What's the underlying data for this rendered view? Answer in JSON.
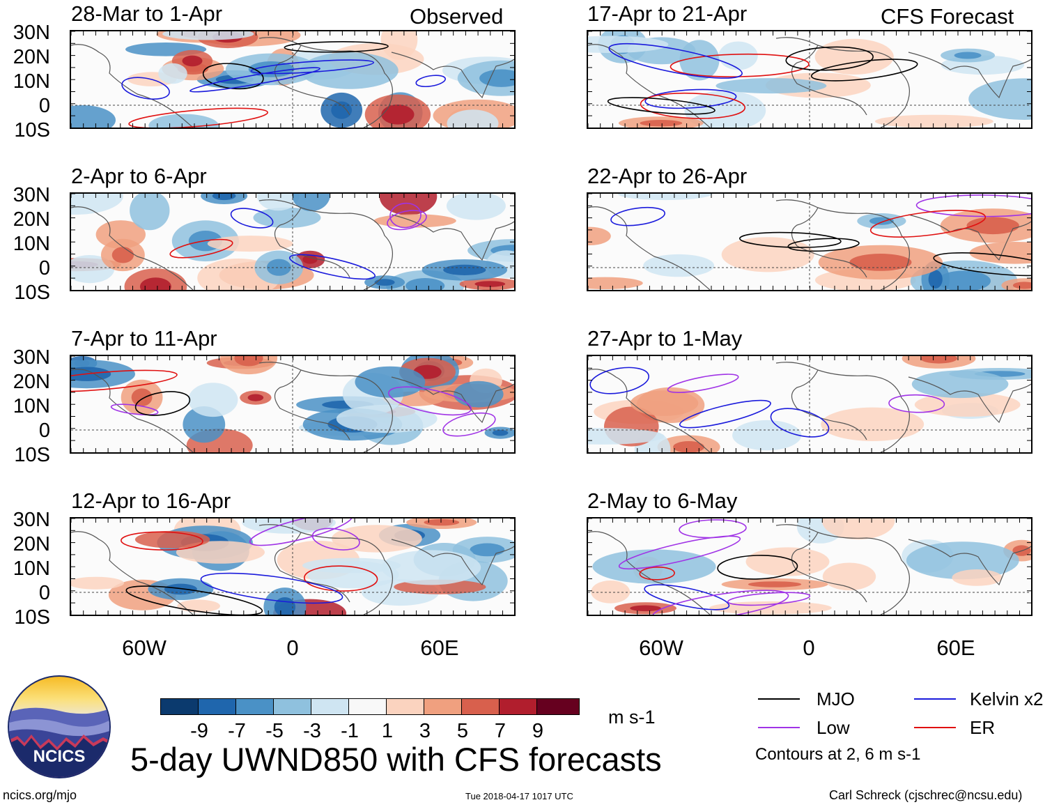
{
  "left_header": "Observed",
  "right_header": "CFS Forecast",
  "panels_left": [
    {
      "title": "28-Mar to 1-Apr"
    },
    {
      "title": "2-Apr to 6-Apr"
    },
    {
      "title": "7-Apr to 11-Apr"
    },
    {
      "title": "12-Apr to 16-Apr"
    }
  ],
  "panels_right": [
    {
      "title": "17-Apr to 21-Apr"
    },
    {
      "title": "22-Apr to 26-Apr"
    },
    {
      "title": "27-Apr to 1-May"
    },
    {
      "title": "2-May to 6-May"
    }
  ],
  "lat_labels": [
    "30N",
    "20N",
    "10N",
    "0",
    "10S"
  ],
  "lon_labels": [
    "60W",
    "0",
    "60E"
  ],
  "colorbar": {
    "colors": [
      "#0b3a6e",
      "#1f66ad",
      "#4a91c6",
      "#8fc1de",
      "#cfe5f2",
      "#f8f8f8",
      "#fbd3bf",
      "#f0a07f",
      "#d8604d",
      "#b11e2d",
      "#66001f"
    ],
    "labels": [
      "-9",
      "-7",
      "-5",
      "-3",
      "-1",
      "1",
      "3",
      "5",
      "7",
      "9"
    ],
    "units": "m s-1"
  },
  "main_title": "5-day UWND850 with CFS forecasts",
  "legend": {
    "items": [
      {
        "name": "MJO",
        "color": "#000000"
      },
      {
        "name": "Kelvin x2",
        "color": "#1a1adc"
      },
      {
        "name": "Low",
        "color": "#a033e6"
      },
      {
        "name": "ER",
        "color": "#e01010"
      }
    ],
    "note": "Contours at 2, 6 m s-1"
  },
  "logo_text": "NCICS",
  "footer": {
    "url": "ncics.org/mjo",
    "timestamp": "Tue 2018-04-17 1017 UTC",
    "credit": "Carl Schreck (cjschrec@ncsu.edu)"
  }
}
